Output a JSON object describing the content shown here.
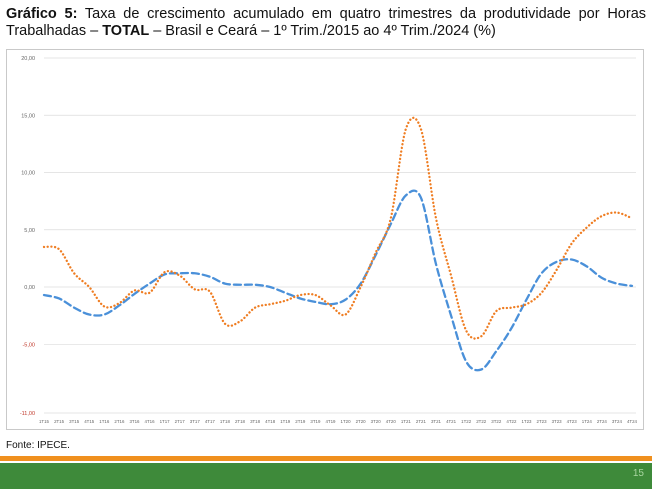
{
  "header": {
    "prefix": "Gráfico 5:",
    "part1": " Taxa de crescimento acumulado em quatro trimestres da produtividade por Horas Trabalhadas – ",
    "bold": "TOTAL",
    "part2": " – Brasil e Ceará – 1º Trim./2015 ao 4º Trim./2024 (%)"
  },
  "footer": {
    "source": "Fonte: IPECE.",
    "page_number": "15"
  },
  "colors": {
    "brasil": "#4a90d9",
    "ceara": "#ef7d22",
    "orange_bar": "#f0901e",
    "green_bar": "#3e8a3a"
  },
  "chart_data": {
    "type": "line",
    "title": "",
    "xlabel": "",
    "ylabel": "",
    "ylim": [
      -11,
      20
    ],
    "yticks": [
      "20,00",
      "15,00",
      "10,00",
      "5,00",
      "0,00",
      "-5,00",
      "-11,00"
    ],
    "yticks_values": [
      20,
      15,
      10,
      5,
      0,
      -5,
      -11
    ],
    "grid": true,
    "legend": "none",
    "categories": [
      "1T15",
      "2T15",
      "3T15",
      "4T15",
      "1T16",
      "2T16",
      "3T16",
      "4T16",
      "1T17",
      "2T17",
      "3T17",
      "4T17",
      "1T18",
      "2T18",
      "3T18",
      "4T18",
      "1T19",
      "2T19",
      "3T19",
      "4T19",
      "1T20",
      "2T20",
      "3T20",
      "4T20",
      "1T21",
      "2T21",
      "3T21",
      "4T21",
      "1T22",
      "2T22",
      "3T22",
      "4T22",
      "1T23",
      "2T23",
      "3T23",
      "4T23",
      "1T24",
      "2T24",
      "3T24",
      "4T24"
    ],
    "series": [
      {
        "style": "dashed",
        "color": "#4a90d9",
        "values": [
          -0.7,
          -1.0,
          -1.8,
          -2.4,
          -2.4,
          -1.6,
          -0.6,
          0.3,
          1.1,
          1.2,
          1.2,
          0.9,
          0.3,
          0.2,
          0.2,
          0.0,
          -0.5,
          -1.0,
          -1.3,
          -1.5,
          -1.1,
          0.3,
          2.8,
          5.5,
          8.0,
          7.8,
          2.0,
          -2.5,
          -6.5,
          -7.2,
          -5.6,
          -3.6,
          -1.1,
          1.2,
          2.2,
          2.4,
          1.8,
          0.8,
          0.3,
          0.1
        ]
      },
      {
        "style": "dotted",
        "color": "#ef7d22",
        "values": [
          3.5,
          3.3,
          1.2,
          0.0,
          -1.7,
          -1.4,
          -0.3,
          -0.5,
          1.3,
          1.0,
          -0.2,
          -0.4,
          -3.2,
          -3.0,
          -1.8,
          -1.5,
          -1.2,
          -0.7,
          -0.7,
          -1.6,
          -2.4,
          0.0,
          3.0,
          6.0,
          13.8,
          13.8,
          6.0,
          1.0,
          -3.8,
          -4.3,
          -2.1,
          -1.8,
          -1.5,
          -0.5,
          1.5,
          3.8,
          5.2,
          6.2,
          6.5,
          6.0
        ]
      }
    ]
  }
}
